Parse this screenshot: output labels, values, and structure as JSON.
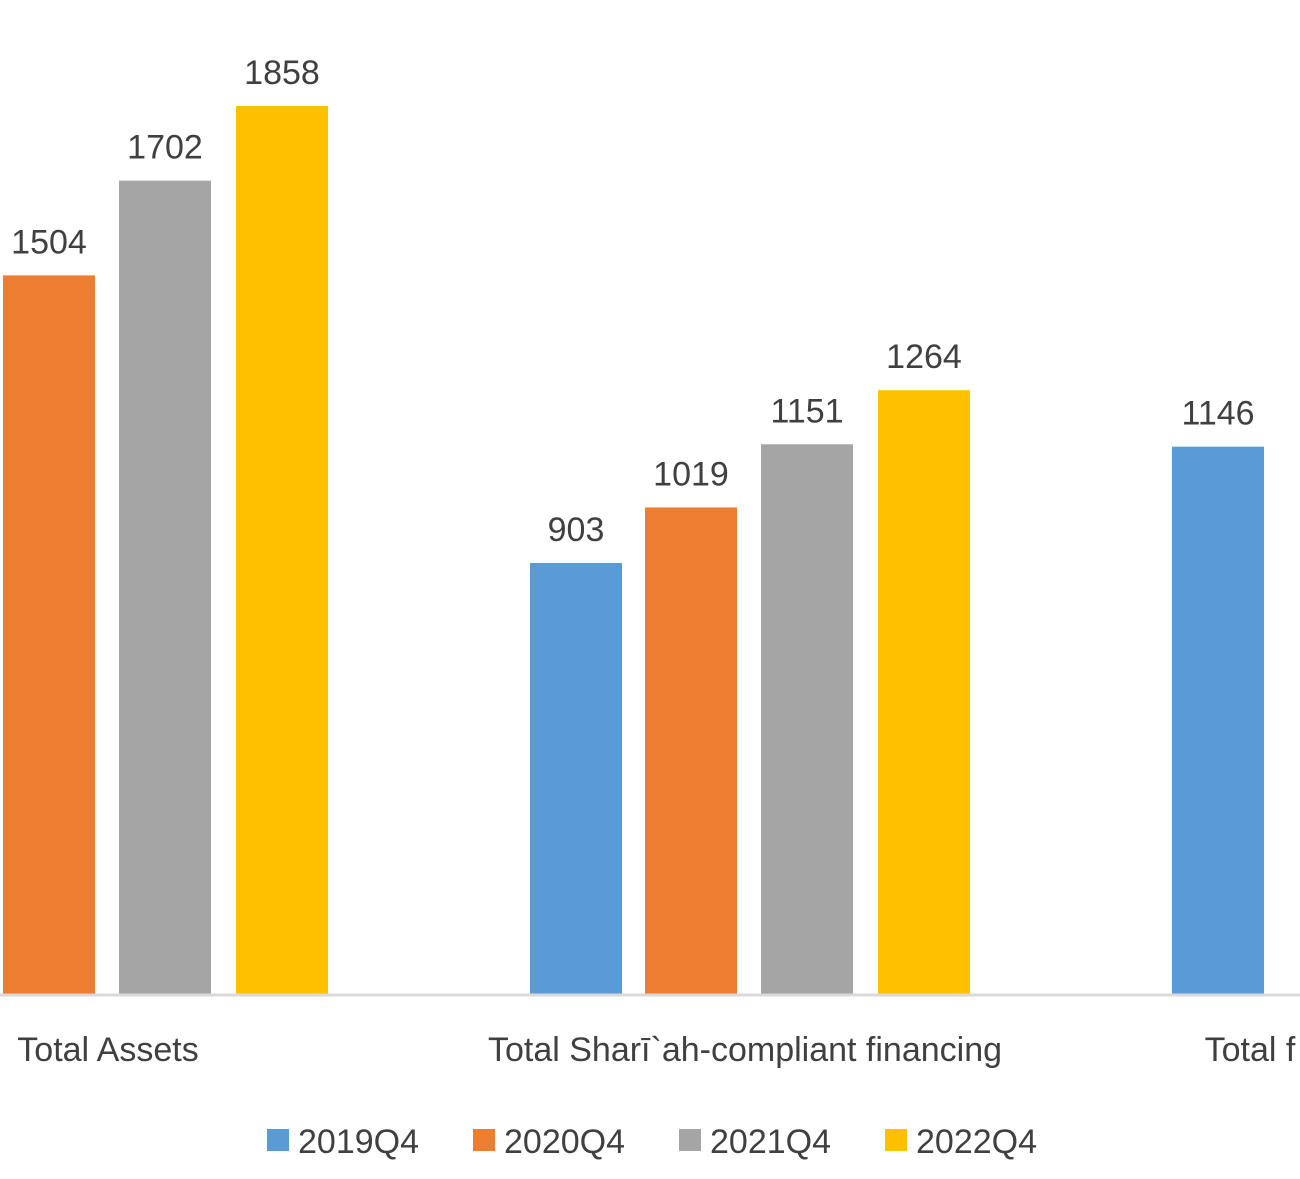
{
  "chart_data": {
    "type": "bar",
    "title": "",
    "xlabel": "",
    "ylabel": "",
    "ylim": [
      0,
      2000
    ],
    "grid": false,
    "legend_position": "bottom",
    "categories": [
      "Total Assets",
      "Total Sharī`ah-compliant financing",
      "Total f"
    ],
    "series": [
      {
        "name": "2019Q4",
        "color": "#5B9BD5",
        "values": [
          null,
          903,
          1146
        ]
      },
      {
        "name": "2020Q4",
        "color": "#ED7D31",
        "values": [
          1504,
          1019,
          null
        ]
      },
      {
        "name": "2021Q4",
        "color": "#A5A5A5",
        "values": [
          1702,
          1151,
          null
        ]
      },
      {
        "name": "2022Q4",
        "color": "#FFC000",
        "values": [
          1858,
          1264,
          null
        ]
      }
    ]
  }
}
